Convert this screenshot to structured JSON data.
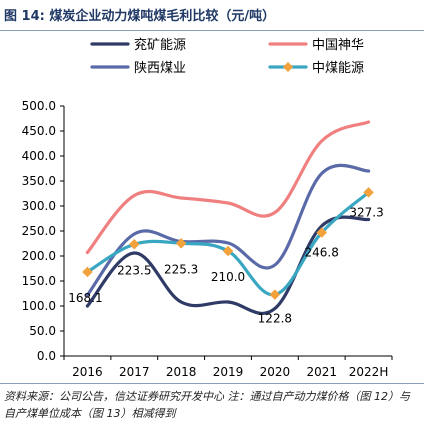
{
  "figure": {
    "title": "图 14: 煤炭企业动力煤吨煤毛利比较（元/吨）",
    "source": "资料来源：公司公告，信达证券研究开发中心 注：通过自产动力煤价格（图 12）与自产煤单位成本（图 13）相减得到"
  },
  "chart_data": {
    "type": "line",
    "title": "",
    "xlabel": "",
    "ylabel": "",
    "categories": [
      "2016",
      "2017",
      "2018",
      "2019",
      "2020",
      "2021",
      "2022H"
    ],
    "ylim": [
      0,
      500
    ],
    "yticks": [
      "0.0",
      "50.0",
      "100.0",
      "150.0",
      "200.0",
      "250.0",
      "300.0",
      "350.0",
      "400.0",
      "450.0",
      "500.0"
    ],
    "grid": false,
    "legend_position": "top",
    "series": [
      {
        "name": "兖矿能源",
        "color": "#2f3b66",
        "values": [
          100,
          206,
          108,
          108,
          95,
          260,
          273
        ],
        "markers": false,
        "labels": []
      },
      {
        "name": "中国神华",
        "color": "#f08080",
        "values": [
          207,
          321,
          316,
          306,
          287,
          430,
          468
        ],
        "markers": false,
        "labels": []
      },
      {
        "name": "陕西煤业",
        "color": "#5a6aa8",
        "values": [
          122,
          244,
          229,
          226,
          182,
          365,
          370
        ],
        "markers": false,
        "labels": []
      },
      {
        "name": "中煤能源",
        "color": "#3aa7c2",
        "marker_color": "#f2a13c",
        "values": [
          168.1,
          223.5,
          225.3,
          210.0,
          122.8,
          246.8,
          327.3
        ],
        "markers": true,
        "labels": [
          "168.1",
          "223.5",
          "225.3",
          "210.0",
          "122.8",
          "246.8",
          "327.3"
        ]
      }
    ]
  }
}
